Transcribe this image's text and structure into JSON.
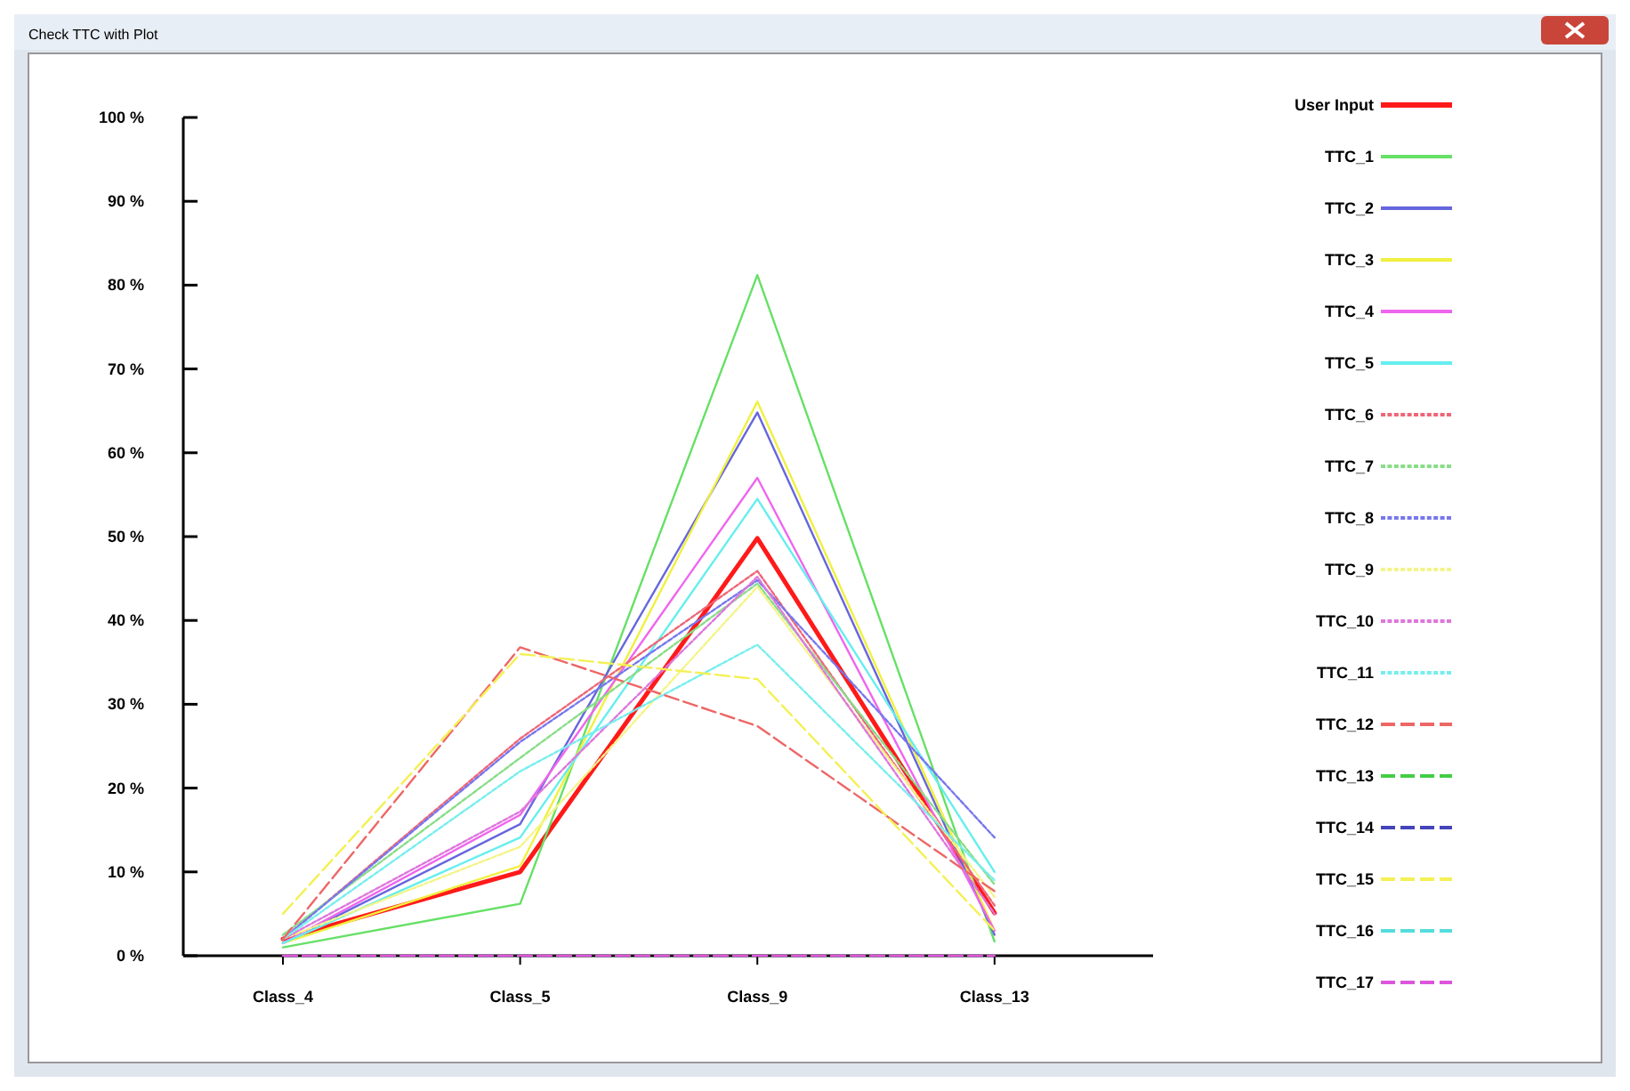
{
  "chart_data": {
    "type": "line",
    "title": "Check TTC with Plot",
    "categories": [
      "Class_4",
      "Class_5",
      "Class_9",
      "Class_13"
    ],
    "ylim": [
      0,
      100
    ],
    "yticks": [
      {
        "value": 0,
        "label": "0 %"
      },
      {
        "value": 10,
        "label": "10 %"
      },
      {
        "value": 20,
        "label": "20 %"
      },
      {
        "value": 30,
        "label": "30 %"
      },
      {
        "value": 40,
        "label": "40 %"
      },
      {
        "value": 50,
        "label": "50 %"
      },
      {
        "value": 60,
        "label": "60 %"
      },
      {
        "value": 70,
        "label": "70 %"
      },
      {
        "value": 80,
        "label": "80 %"
      },
      {
        "value": 90,
        "label": "90 %"
      },
      {
        "value": 100,
        "label": "100 %"
      }
    ],
    "legend": "right",
    "marker": "none",
    "series": [
      {
        "name": "User Input",
        "color": "#ff1a1a",
        "line_style": "solid",
        "values": [
          2,
          10,
          49.8,
          5.1
        ]
      },
      {
        "name": "TTC_1",
        "color": "#66e066",
        "line_style": "solid",
        "values": [
          1,
          6.2,
          81.2,
          1.7
        ]
      },
      {
        "name": "TTC_2",
        "color": "#6666dd",
        "line_style": "solid",
        "values": [
          1.5,
          15.7,
          64.8,
          2.5
        ]
      },
      {
        "name": "TTC_3",
        "color": "#f0f040",
        "line_style": "solid",
        "values": [
          1.5,
          10.7,
          66.1,
          3
        ]
      },
      {
        "name": "TTC_4",
        "color": "#ee66ee",
        "line_style": "solid",
        "values": [
          1.5,
          16.8,
          57,
          3
        ]
      },
      {
        "name": "TTC_5",
        "color": "#66eeee",
        "line_style": "solid",
        "values": [
          1.5,
          14.1,
          54.5,
          10
        ]
      },
      {
        "name": "TTC_6",
        "color": "#ee6677",
        "line_style": "dotted",
        "values": [
          2,
          25.9,
          45.9,
          6
        ]
      },
      {
        "name": "TTC_7",
        "color": "#88dd88",
        "line_style": "dotted",
        "values": [
          2.5,
          23.6,
          44.4,
          8.5
        ]
      },
      {
        "name": "TTC_8",
        "color": "#7777ee",
        "line_style": "dotted",
        "values": [
          2,
          25.5,
          44.8,
          14.1
        ]
      },
      {
        "name": "TTC_9",
        "color": "#f4f488",
        "line_style": "dotted",
        "values": [
          2,
          13,
          44,
          7
        ]
      },
      {
        "name": "TTC_10",
        "color": "#dd77dd",
        "line_style": "dotted",
        "values": [
          2,
          17.2,
          45.2,
          5
        ]
      },
      {
        "name": "TTC_11",
        "color": "#77eeee",
        "line_style": "dotted",
        "values": [
          2,
          22,
          37.1,
          9
        ]
      },
      {
        "name": "TTC_12",
        "color": "#ee6666",
        "line_style": "dashed",
        "values": [
          2,
          36.8,
          27.4,
          7.7
        ]
      },
      {
        "name": "TTC_13",
        "color": "#44cc44",
        "line_style": "dashed",
        "values": [
          null,
          null,
          null,
          null
        ]
      },
      {
        "name": "TTC_14",
        "color": "#4444bb",
        "line_style": "dashed",
        "values": [
          null,
          null,
          null,
          null
        ]
      },
      {
        "name": "TTC_15",
        "color": "#f4f055",
        "line_style": "dashed",
        "values": [
          5,
          36,
          33,
          3
        ]
      },
      {
        "name": "TTC_16",
        "color": "#55dddd",
        "line_style": "dashed",
        "values": [
          null,
          null,
          null,
          null
        ]
      },
      {
        "name": "TTC_17",
        "color": "#dd55dd",
        "line_style": "dashed",
        "values": [
          0,
          0,
          0,
          0
        ]
      }
    ]
  }
}
